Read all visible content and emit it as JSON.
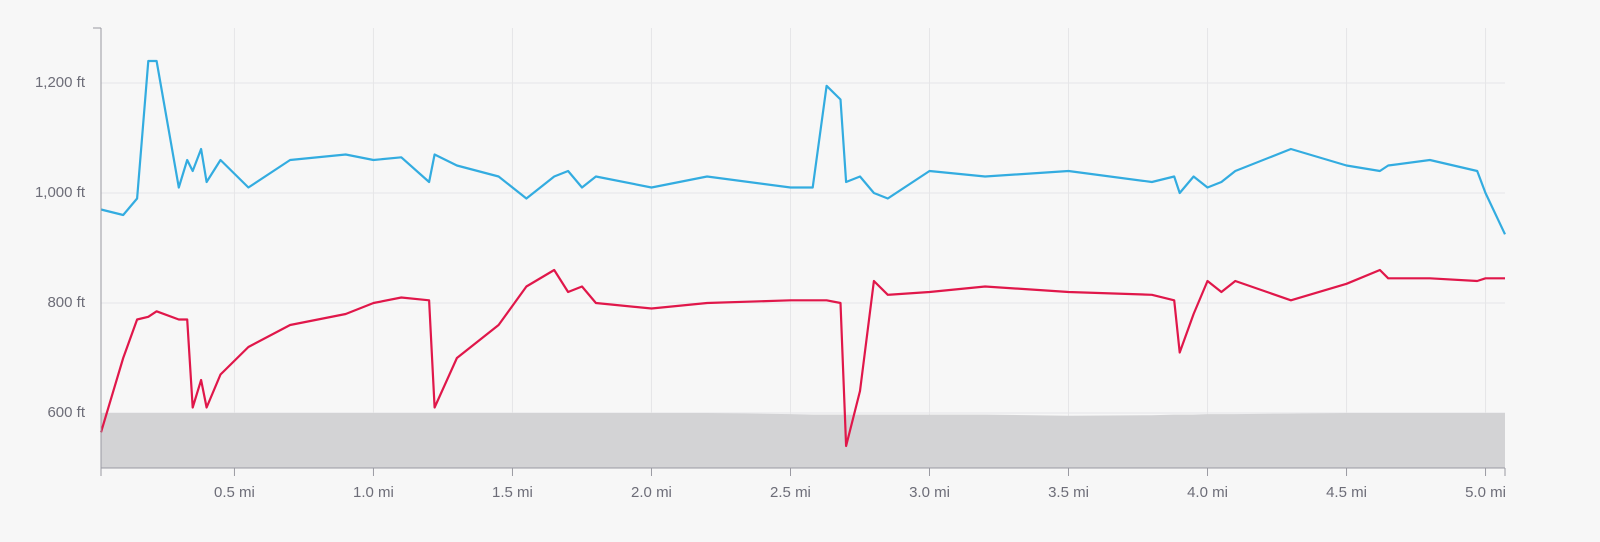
{
  "chart_data": {
    "type": "line",
    "x": [
      0.02,
      0.1,
      0.15,
      0.19,
      0.22,
      0.3,
      0.33,
      0.35,
      0.38,
      0.4,
      0.45,
      0.55,
      0.7,
      0.9,
      1.0,
      1.1,
      1.2,
      1.22,
      1.3,
      1.45,
      1.55,
      1.65,
      1.7,
      1.75,
      1.8,
      2.0,
      2.2,
      2.5,
      2.58,
      2.63,
      2.68,
      2.7,
      2.75,
      2.8,
      2.85,
      3.0,
      3.2,
      3.5,
      3.8,
      3.88,
      3.9,
      3.95,
      4.0,
      4.05,
      4.1,
      4.3,
      4.5,
      4.62,
      4.65,
      4.8,
      4.97,
      5.0,
      5.07
    ],
    "series": [
      {
        "color": "#d3d3d5",
        "area": true,
        "values": [
          600,
          600,
          600,
          600,
          600,
          600,
          600,
          600,
          600,
          600,
          600,
          600,
          600,
          600,
          600,
          600,
          600,
          600,
          600,
          600,
          600,
          600,
          600,
          600,
          600,
          600,
          600,
          598,
          597,
          597,
          597,
          597,
          597,
          597,
          597,
          597,
          597,
          595,
          596,
          597,
          597,
          597,
          598,
          598,
          598,
          599,
          600,
          600,
          600,
          600,
          600,
          600,
          600
        ]
      },
      {
        "color": "#e0174a",
        "values": [
          565,
          700,
          770,
          775,
          785,
          770,
          770,
          610,
          660,
          610,
          670,
          720,
          760,
          780,
          800,
          810,
          805,
          610,
          700,
          760,
          830,
          860,
          820,
          830,
          800,
          790,
          800,
          805,
          805,
          805,
          800,
          540,
          640,
          840,
          815,
          820,
          830,
          820,
          815,
          805,
          710,
          780,
          840,
          820,
          840,
          805,
          835,
          860,
          845,
          845,
          840,
          845,
          845
        ]
      },
      {
        "color": "#33ace0",
        "values": [
          970,
          960,
          990,
          1240,
          1240,
          1010,
          1060,
          1040,
          1080,
          1020,
          1060,
          1010,
          1060,
          1070,
          1060,
          1065,
          1020,
          1070,
          1050,
          1030,
          990,
          1030,
          1040,
          1010,
          1030,
          1010,
          1030,
          1010,
          1010,
          1195,
          1170,
          1020,
          1030,
          1000,
          990,
          1040,
          1030,
          1040,
          1020,
          1030,
          1000,
          1030,
          1010,
          1020,
          1040,
          1080,
          1050,
          1040,
          1050,
          1060,
          1040,
          1000,
          925
        ]
      }
    ],
    "xlim": [
      0.02,
      5.07
    ],
    "xticks": [
      {
        "value": 0.5,
        "label": "0.5 mi"
      },
      {
        "value": 1.0,
        "label": "1.0 mi"
      },
      {
        "value": 1.5,
        "label": "1.5 mi"
      },
      {
        "value": 2.0,
        "label": "2.0 mi"
      },
      {
        "value": 2.5,
        "label": "2.5 mi"
      },
      {
        "value": 3.0,
        "label": "3.0 mi"
      },
      {
        "value": 3.5,
        "label": "3.5 mi"
      },
      {
        "value": 4.0,
        "label": "4.0 mi"
      },
      {
        "value": 4.5,
        "label": "4.5 mi"
      },
      {
        "value": 5.0,
        "label": "5.0 mi"
      }
    ],
    "ylim": [
      500,
      1300
    ],
    "yticks": [
      {
        "value": 600,
        "label": "600 ft"
      },
      {
        "value": 800,
        "label": "800 ft"
      },
      {
        "value": 1000,
        "label": "1,000 ft"
      },
      {
        "value": 1200,
        "label": "1,200 ft"
      }
    ],
    "grid": true
  }
}
